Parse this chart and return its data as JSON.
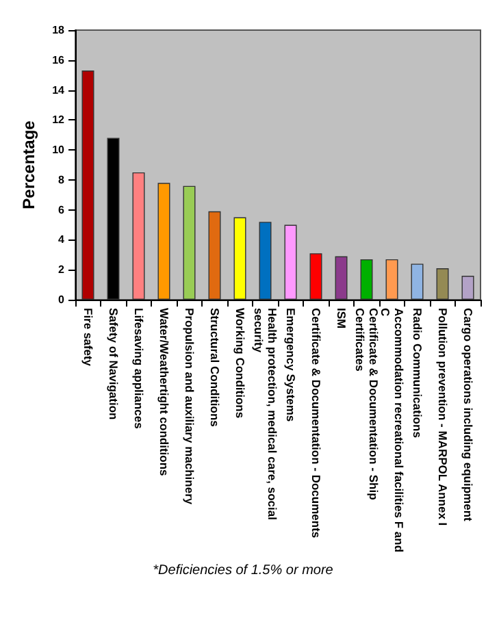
{
  "chart_data": {
    "type": "bar",
    "ylabel": "Percentage",
    "categories": [
      "Fire safety",
      "Safety of Navigation",
      "Lifesaving appliances",
      "Water/Weathertight conditions",
      "Propulsion and auxiliary machinery",
      "Structural Conditions",
      "Working Conditions",
      "Health protection, medical care, social security",
      "Emergency Systems",
      "Certificate & Documentation - Documents",
      "ISM",
      "Certificate & Documentation - Ship Certificates",
      "Accommodation recreational facilities F and C",
      "Radio Communications",
      "Pollution prevention - MARPOL Annex I",
      "Cargo operations including equipment"
    ],
    "values": [
      15.3,
      10.8,
      8.5,
      7.8,
      7.6,
      5.9,
      5.5,
      5.2,
      5.0,
      3.1,
      2.9,
      2.7,
      2.7,
      2.4,
      2.1,
      1.6
    ],
    "colors": [
      "#b00000",
      "#000000",
      "#ff8080",
      "#ff9900",
      "#99cc55",
      "#e06a10",
      "#ffff00",
      "#0070c0",
      "#ff99ff",
      "#ff0000",
      "#8b3a8b",
      "#00b000",
      "#ff9a50",
      "#8fb4e3",
      "#948a54",
      "#b3a2c7"
    ],
    "ylim": [
      0,
      18
    ],
    "yticks": [
      0,
      2,
      4,
      6,
      8,
      10,
      12,
      14,
      16,
      18
    ],
    "grid": false,
    "annotations": [
      "*Deficiencies of 1.5% or more"
    ]
  }
}
